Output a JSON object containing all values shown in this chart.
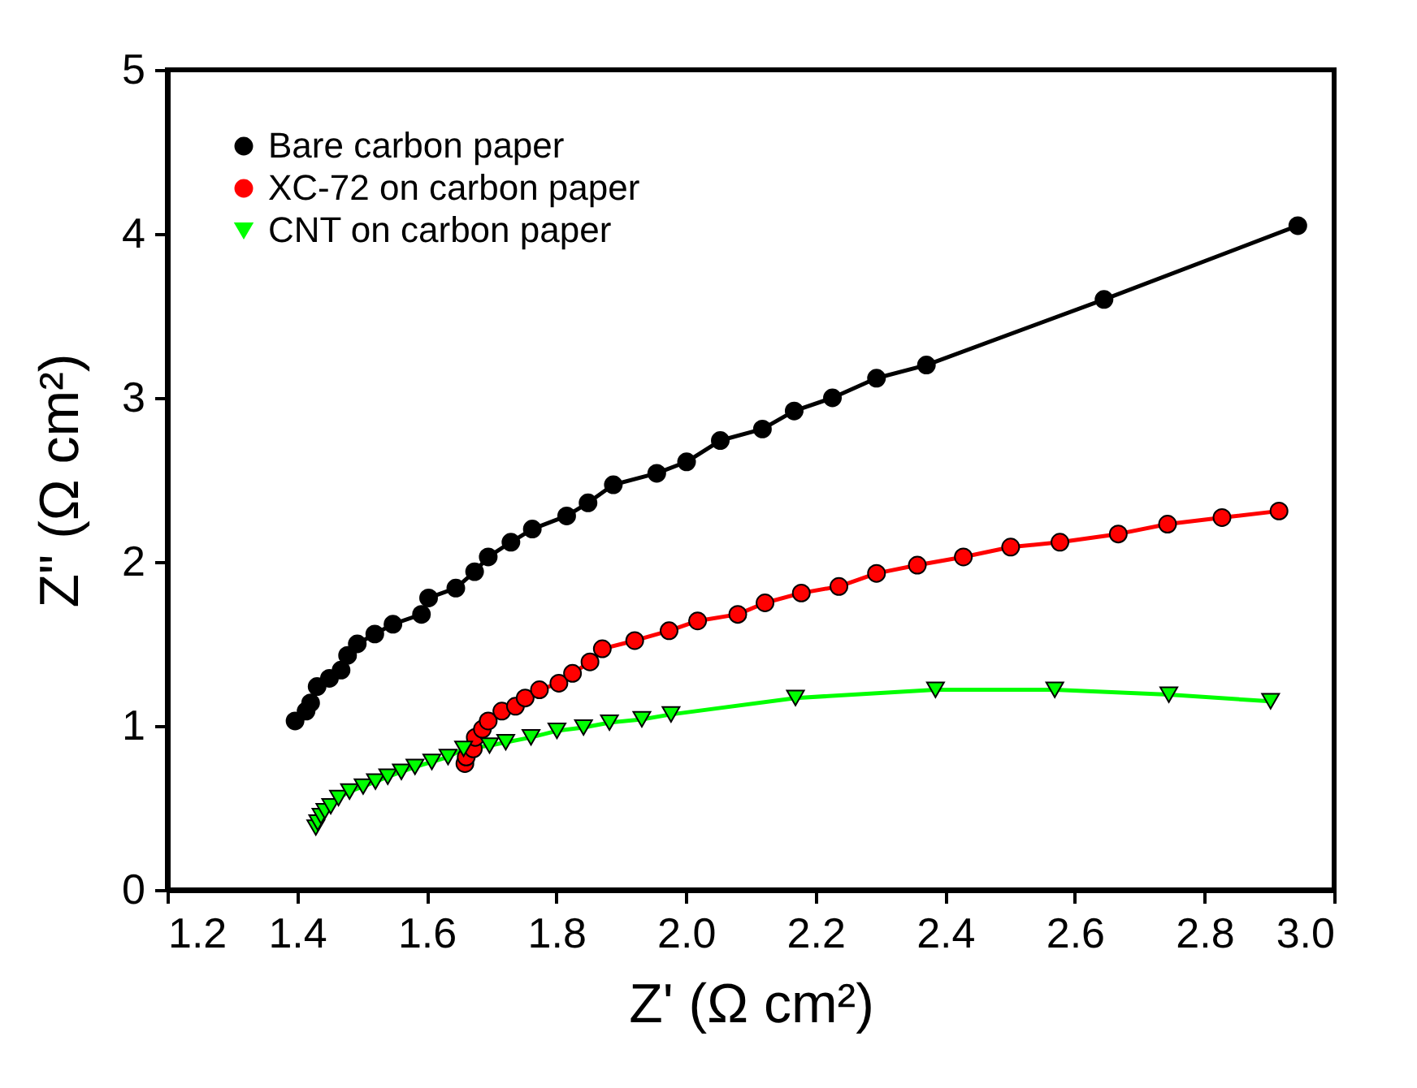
{
  "chart_data": {
    "type": "line",
    "xlabel": "Z' (Ω cm²)",
    "ylabel": "Z\" (Ω cm²)",
    "xlim": [
      1.2,
      3.0
    ],
    "xticks": [
      1.2,
      1.4,
      1.6,
      1.8,
      {
        "value": 2,
        "label": "2.0"
      },
      2.2,
      2.4,
      2.6,
      2.8,
      {
        "value": 3,
        "label": "3.0"
      }
    ],
    "ylim": [
      0,
      5
    ],
    "yticks": [
      0,
      1,
      2,
      3,
      4,
      5
    ],
    "grid": false,
    "legend": "top left",
    "line_style": "solid",
    "series": [
      {
        "name": "Bare carbon paper",
        "color": "#000000",
        "marker": "circle",
        "x": [
          1.397,
          1.414,
          1.421,
          1.431,
          1.45,
          1.468,
          1.478,
          1.493,
          1.52,
          1.548,
          1.592,
          1.603,
          1.645,
          1.674,
          1.695,
          1.73,
          1.763,
          1.816,
          1.849,
          1.888,
          1.955,
          2.001,
          2.053,
          2.118,
          2.167,
          2.226,
          2.294,
          2.371,
          2.645,
          2.944
        ],
        "values": [
          1.03,
          1.09,
          1.14,
          1.24,
          1.29,
          1.34,
          1.43,
          1.5,
          1.56,
          1.62,
          1.68,
          1.78,
          1.84,
          1.94,
          2.03,
          2.12,
          2.2,
          2.28,
          2.36,
          2.47,
          2.54,
          2.61,
          2.74,
          2.81,
          2.92,
          3.0,
          3.12,
          3.2,
          3.6,
          4.05
        ]
      },
      {
        "name": "XC-72 on carbon paper",
        "color": "#ff0000",
        "marker": "circle",
        "x": [
          1.659,
          1.661,
          1.672,
          1.675,
          1.686,
          1.695,
          1.716,
          1.737,
          1.752,
          1.774,
          1.804,
          1.825,
          1.852,
          1.871,
          1.921,
          1.974,
          2.018,
          2.08,
          2.122,
          2.178,
          2.236,
          2.294,
          2.357,
          2.428,
          2.501,
          2.577,
          2.667,
          2.743,
          2.827,
          2.915
        ],
        "values": [
          0.77,
          0.81,
          0.86,
          0.93,
          0.98,
          1.03,
          1.09,
          1.12,
          1.17,
          1.22,
          1.26,
          1.32,
          1.39,
          1.47,
          1.52,
          1.58,
          1.64,
          1.68,
          1.75,
          1.81,
          1.85,
          1.93,
          1.98,
          2.03,
          2.09,
          2.12,
          2.17,
          2.23,
          2.27,
          2.31
        ]
      },
      {
        "name": "CNT on carbon paper",
        "color": "#00ff00",
        "marker": "triangle",
        "x": [
          1.429,
          1.432,
          1.437,
          1.443,
          1.452,
          1.464,
          1.481,
          1.502,
          1.521,
          1.54,
          1.561,
          1.582,
          1.608,
          1.633,
          1.657,
          1.697,
          1.722,
          1.761,
          1.801,
          1.842,
          1.882,
          1.932,
          1.977,
          2.169,
          2.385,
          2.569,
          2.745,
          2.902
        ],
        "values": [
          0.38,
          0.41,
          0.45,
          0.48,
          0.51,
          0.56,
          0.6,
          0.63,
          0.66,
          0.69,
          0.72,
          0.75,
          0.78,
          0.81,
          0.86,
          0.88,
          0.9,
          0.93,
          0.97,
          0.99,
          1.02,
          1.04,
          1.07,
          1.17,
          1.22,
          1.22,
          1.19,
          1.15
        ]
      }
    ]
  }
}
